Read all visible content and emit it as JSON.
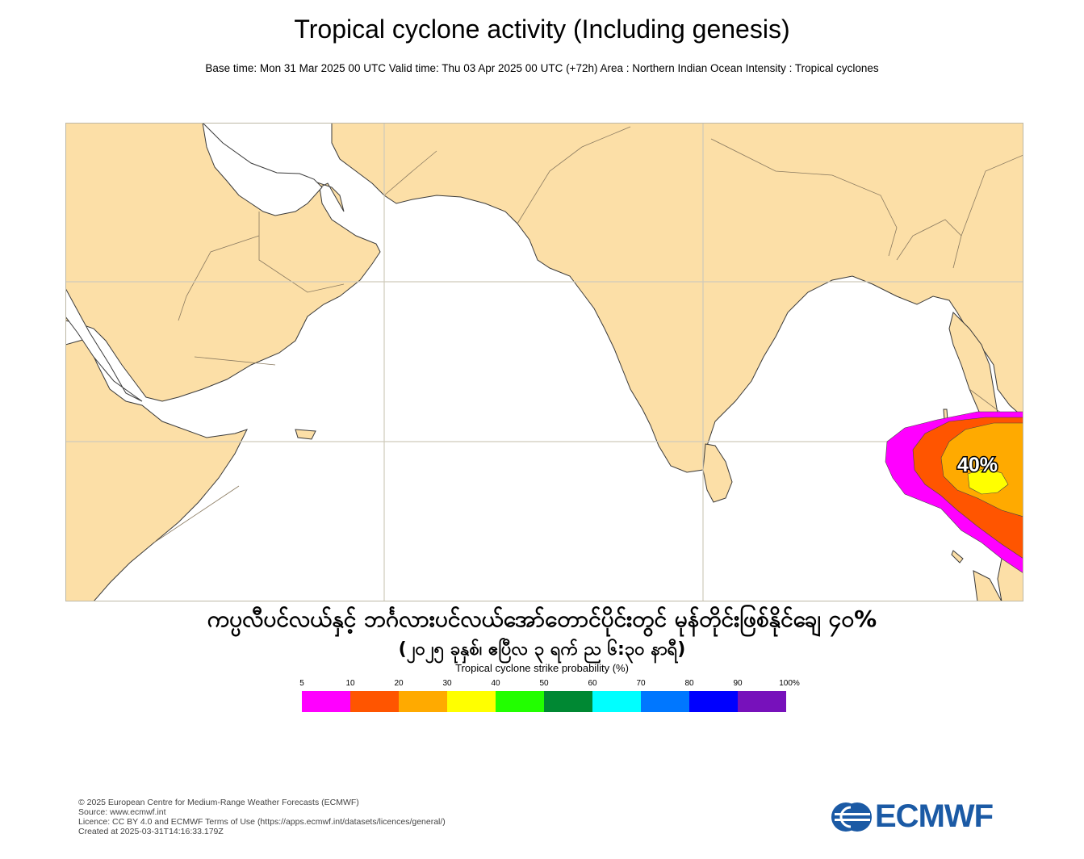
{
  "title": "Tropical cyclone activity (Including genesis)",
  "subtitle": "Base time: Mon 31 Mar 2025 00 UTC Valid time: Thu 03 Apr 2025 00 UTC (+72h) Area : Northern Indian Ocean Intensity : Tropical cyclones",
  "map": {
    "land_color": "#fcdfa7",
    "sea_color": "#ffffff",
    "grid_color": "#cfcabb",
    "probability_label": "40%"
  },
  "caption": {
    "line1": "ကပ္ပလီပင်လယ်နှင့် ဘင်္ဂလားပင်လယ်အော်တောင်ပိုင်းတွင် မုန်တိုင်းဖြစ်နိုင်ချေ ၄၀%",
    "line2": "(၂၀၂၅ ခုနှစ်၊ ဧပြီလ ၃ ရက် ည ၆:၃၀ နာရီ)"
  },
  "legend": {
    "title": "Tropical cyclone strike probability (%)",
    "ticks": [
      "5",
      "10",
      "20",
      "30",
      "40",
      "50",
      "60",
      "70",
      "80",
      "90",
      "100%"
    ],
    "colors": [
      "#ff00ff",
      "#ff5500",
      "#ffaa00",
      "#ffff00",
      "#22ff00",
      "#008833",
      "#00ffff",
      "#0077ff",
      "#0000ff",
      "#7711bb"
    ]
  },
  "footer": {
    "lines": [
      "© 2025 European Centre for Medium-Range Weather Forecasts (ECMWF)",
      "Source: www.ecmwf.int",
      "Licence: CC BY 4.0 and ECMWF Terms of Use (https://apps.ecmwf.int/datasets/licences/general/)",
      "Created at 2025-03-31T14:16:33.179Z"
    ]
  },
  "logo": {
    "text": "ECMWF",
    "color": "#1b5aa5"
  }
}
